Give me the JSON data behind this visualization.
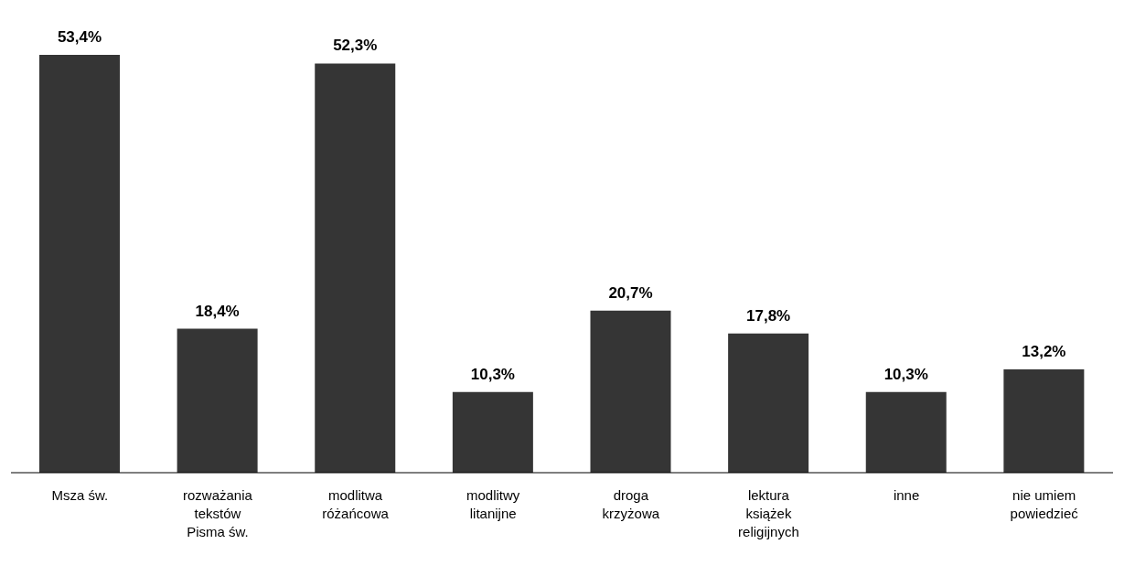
{
  "chart_data": {
    "type": "bar",
    "categories": [
      "Msza św.",
      "rozważania tekstów Pisma św.",
      "modlitwa różańcowa",
      "modlitwy litanijne",
      "droga krzyżowa",
      "lektura książek religijnych",
      "inne",
      "nie umiem powiedzieć"
    ],
    "values": [
      53.4,
      18.4,
      52.3,
      10.3,
      20.7,
      17.8,
      10.3,
      13.2
    ],
    "value_labels": [
      "53,4%",
      "18,4%",
      "52,3%",
      "10,3%",
      "20,7%",
      "17,8%",
      "10,3%",
      "13,2%"
    ],
    "color": "#353535"
  }
}
